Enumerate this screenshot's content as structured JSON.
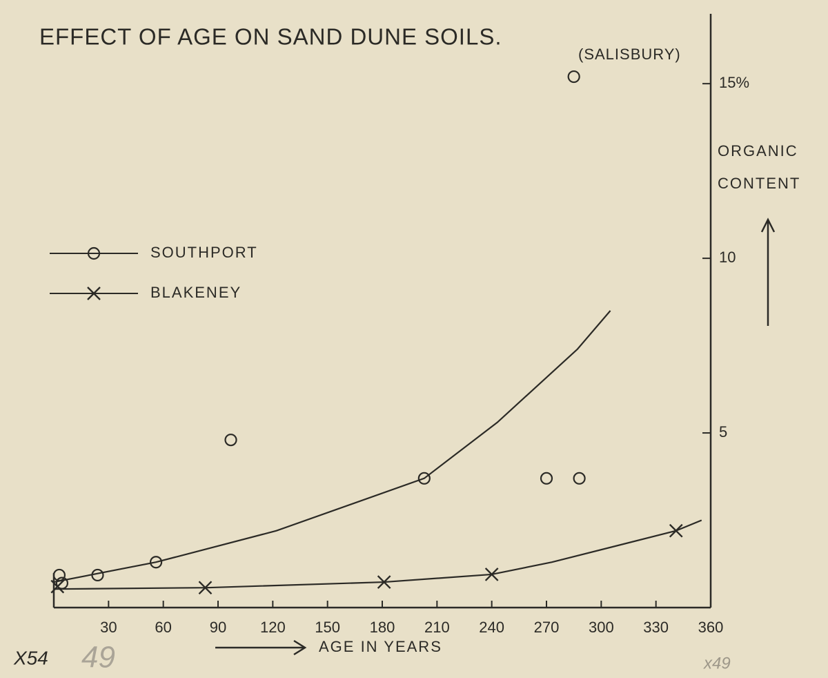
{
  "chart_data": {
    "type": "scatter",
    "title": "EFFECT OF AGE ON  SAND DUNE SOILS.",
    "annotation": "(SALISBURY)",
    "x_label": "AGE IN YEARS",
    "y_label": [
      "ORGANIC",
      "CONTENT"
    ],
    "notes": [
      "X54",
      "49",
      "x49"
    ],
    "xlim": [
      0,
      360
    ],
    "ylim": [
      0,
      17
    ],
    "xticks": [
      30,
      60,
      90,
      120,
      150,
      180,
      210,
      240,
      270,
      300,
      330,
      360
    ],
    "yticks": [
      5,
      10,
      {
        "value": 15,
        "label": "15%"
      }
    ],
    "color": "#2b2a26",
    "series": [
      {
        "name": "SOUTHPORT",
        "marker": "circle",
        "x": [
          3,
          4.5,
          24,
          56,
          97,
          203,
          270,
          288,
          285
        ],
        "values": [
          0.93,
          0.7,
          0.93,
          1.3,
          4.8,
          3.7,
          3.7,
          3.7,
          15.2
        ],
        "curve": {
          "x": [
            0,
            56,
            122,
            203,
            243,
            287,
            305
          ],
          "values": [
            0.73,
            1.3,
            2.2,
            3.7,
            5.3,
            7.4,
            8.5
          ]
        }
      },
      {
        "name": "BLAKENEY",
        "marker": "cross",
        "x": [
          2,
          83,
          181,
          240,
          341
        ],
        "values": [
          0.6,
          0.57,
          0.73,
          0.95,
          2.2
        ],
        "curve": {
          "x": [
            0,
            84,
            181,
            240,
            273,
            341,
            355
          ],
          "values": [
            0.53,
            0.57,
            0.73,
            0.95,
            1.3,
            2.2,
            2.5
          ]
        }
      }
    ]
  }
}
